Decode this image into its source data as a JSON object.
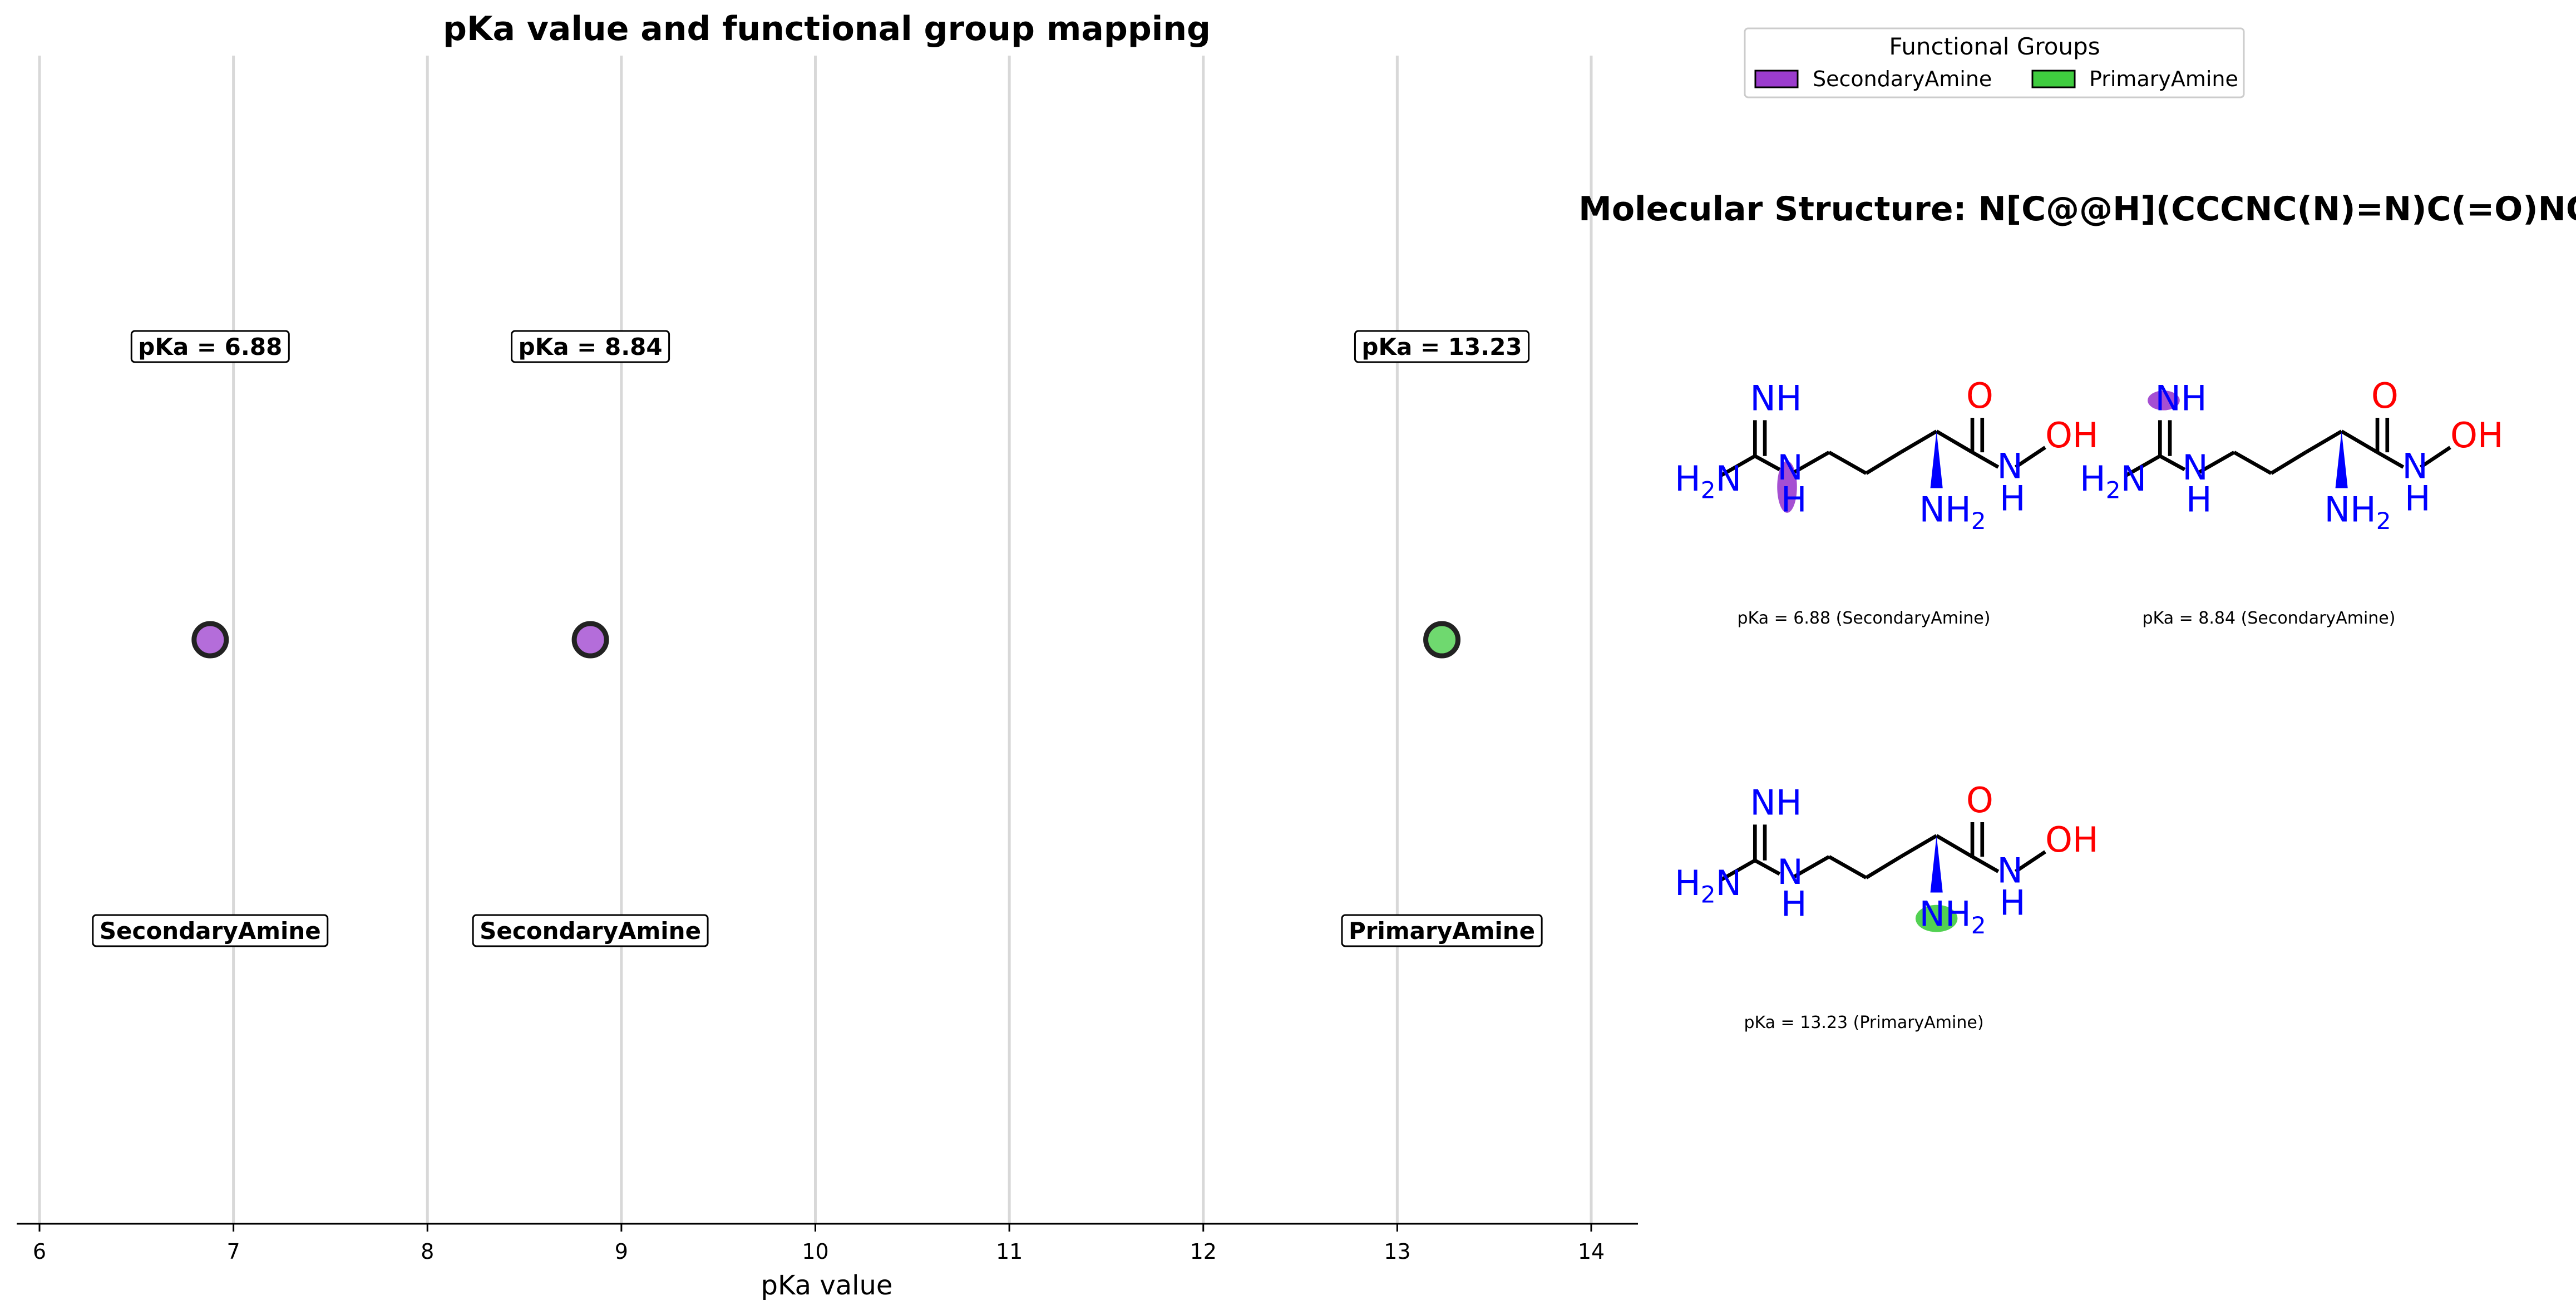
{
  "chart_data": {
    "type": "scatter",
    "title": "pKa value and functional group mapping",
    "xlabel": "pKa value",
    "xlim": [
      5.9,
      14.24
    ],
    "xticks": [
      "6",
      "7",
      "8",
      "9",
      "10",
      "11",
      "12",
      "13",
      "14"
    ],
    "grid": "vertical",
    "points": [
      {
        "x": 6.88,
        "label": "pKa = 6.88",
        "group": "SecondaryAmine"
      },
      {
        "x": 8.84,
        "label": "pKa = 8.84",
        "group": "SecondaryAmine"
      },
      {
        "x": 13.23,
        "label": "pKa = 13.23",
        "group": "PrimaryAmine"
      }
    ],
    "legend": {
      "title": "Functional Groups",
      "placement": "top-right",
      "entries": [
        {
          "name": "SecondaryAmine",
          "color": "#9b3ccd"
        },
        {
          "name": "PrimaryAmine",
          "color": "#3fcc3f"
        }
      ]
    }
  },
  "colors": {
    "SecondaryAmine": "#9b3ccd",
    "PrimaryAmine": "#3fcc3f",
    "grid": "#d8d8d8",
    "bond": "#000000",
    "nitrogen": "#0000ff",
    "oxygen": "#ff0000"
  },
  "molecule_panel": {
    "title": "Molecular Structure: N[C@@H](CCCNC(N)=N)C(=O)NO",
    "atom_labels": {
      "imine": "NH",
      "amidine_n_base": "H",
      "amidine_n_sub": "2",
      "amidine_n_tail": "N",
      "sec_n_top": "N",
      "sec_n_bottom": "H",
      "carbonyl_o": "O",
      "amide_n_top": "N",
      "amide_n_bottom": "H",
      "hydroxyl": "OH",
      "alpha_n_base": "NH",
      "alpha_n_sub": "2"
    },
    "structures": [
      {
        "caption": "pKa = 6.88 (SecondaryAmine)",
        "highlight": "secondary-amine-n",
        "group": "SecondaryAmine"
      },
      {
        "caption": "pKa = 8.84 (SecondaryAmine)",
        "highlight": "imine-n",
        "group": "SecondaryAmine"
      },
      {
        "caption": "pKa = 13.23 (PrimaryAmine)",
        "highlight": "alpha-amine-n",
        "group": "PrimaryAmine"
      }
    ]
  }
}
